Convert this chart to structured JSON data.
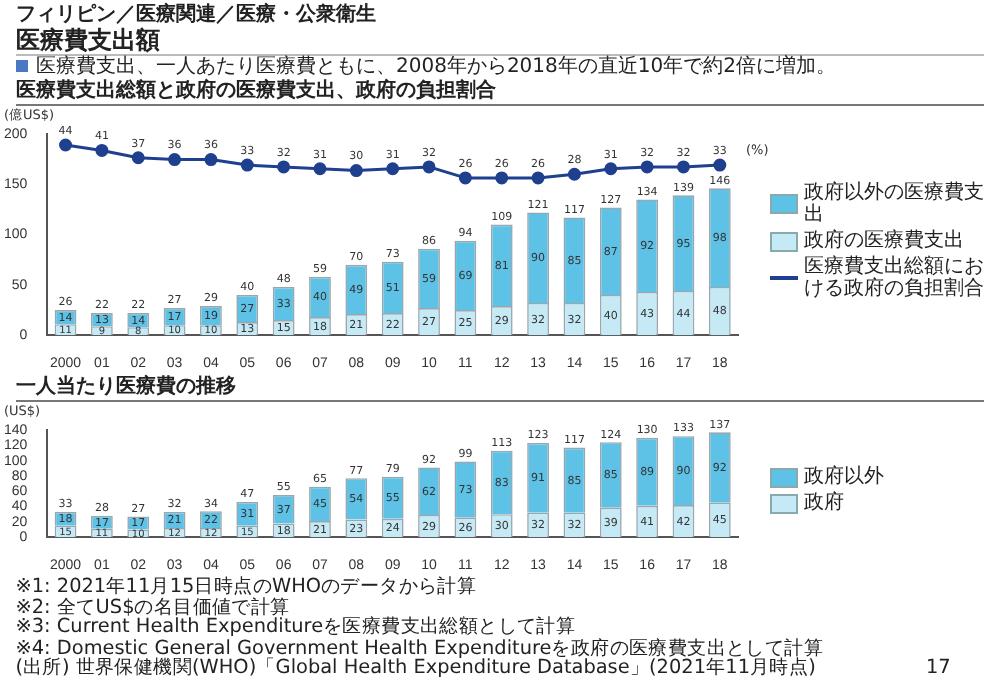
{
  "chart_data": [
    {
      "type": "bar",
      "stacked": true,
      "title": "医療費支出総額と政府の医療費支出、政府の負担割合",
      "annotations": [
        "フィリピン／医療関連／医療・公衆衛生",
        "医療費支出額",
        "医療費支出、一人あたり医療費ともに、2008年から2018年の直近10年で約2倍に増加。"
      ],
      "ylabel": "(億US$)",
      "y2label": "(%)",
      "categories": [
        "2000",
        "01",
        "02",
        "03",
        "04",
        "05",
        "06",
        "07",
        "08",
        "09",
        "10",
        "11",
        "12",
        "13",
        "14",
        "15",
        "16",
        "17",
        "18"
      ],
      "series": [
        {
          "name": "政府の医療費支出",
          "color": "#c6e9f6",
          "values": [
            11,
            9,
            8,
            10,
            10,
            13,
            15,
            18,
            21,
            22,
            27,
            25,
            29,
            32,
            32,
            40,
            43,
            44,
            48
          ]
        },
        {
          "name": "政府以外の医療費支出",
          "color": "#5ec2e6",
          "values": [
            14,
            13,
            14,
            17,
            19,
            27,
            33,
            40,
            49,
            51,
            59,
            69,
            81,
            90,
            85,
            87,
            92,
            95,
            98
          ]
        },
        {
          "name": "医療費支出総額における政府の負担割合",
          "type": "line",
          "axis": "y2",
          "color": "#1f3f8f",
          "marker": "circle",
          "values": [
            44,
            41,
            37,
            36,
            36,
            33,
            32,
            31,
            30,
            31,
            32,
            26,
            26,
            26,
            28,
            31,
            32,
            32,
            33
          ]
        }
      ],
      "totals": [
        "26",
        "22",
        "22",
        "27",
        "29",
        "40",
        "48",
        "59",
        "70",
        "73",
        "86",
        "94",
        "109",
        "121",
        "117",
        "127",
        "134",
        "139",
        "146"
      ],
      "ylim": [
        0,
        200
      ],
      "yticks": [
        0,
        50,
        100,
        150,
        200
      ],
      "y2lim": [
        -60,
        50
      ],
      "data_labels": true,
      "grid": false,
      "legend": "right"
    },
    {
      "type": "bar",
      "stacked": true,
      "title": "一人当たり医療費の推移",
      "ylabel": "(US$)",
      "categories": [
        "2000",
        "01",
        "02",
        "03",
        "04",
        "05",
        "06",
        "07",
        "08",
        "09",
        "10",
        "11",
        "12",
        "13",
        "14",
        "15",
        "16",
        "17",
        "18"
      ],
      "series": [
        {
          "name": "政府",
          "color": "#c6e9f6",
          "values": [
            15,
            11,
            10,
            12,
            12,
            15,
            18,
            21,
            23,
            24,
            29,
            26,
            30,
            32,
            32,
            39,
            41,
            42,
            45
          ]
        },
        {
          "name": "政府以外",
          "color": "#5ec2e6",
          "values": [
            18,
            17,
            17,
            21,
            22,
            31,
            37,
            45,
            54,
            55,
            62,
            73,
            83,
            91,
            85,
            85,
            89,
            90,
            92
          ]
        }
      ],
      "totals": [
        "33",
        "28",
        "27",
        "32",
        "34",
        "47",
        "55",
        "65",
        "77",
        "79",
        "92",
        "99",
        "113",
        "123",
        "117",
        "124",
        "130",
        "133",
        "137"
      ],
      "ylim": [
        0,
        140
      ],
      "yticks": [
        0,
        20,
        40,
        60,
        80,
        100,
        120,
        140
      ],
      "data_labels": true,
      "grid": false,
      "legend": "right",
      "annotations": [
        "※1: 2021年11月15日時点のWHOのデータから計算",
        "※2: 全てUS$の名目価値で計算",
        "※3: Current Health Expenditureを医療費支出総額として計算",
        "※4: Domestic General Government Health Expenditureを政府の医療費支出として計算",
        "(出所) 世界保健機関(WHO)「Global Health Expenditure Database」(2021年11月時点)",
        "17"
      ]
    }
  ]
}
